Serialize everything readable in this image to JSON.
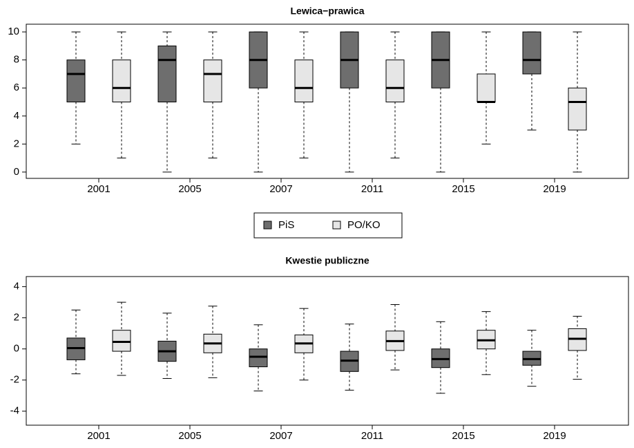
{
  "chart_data": [
    {
      "type": "boxplot",
      "title": "Lewica−prawica",
      "categories": [
        "2001",
        "2005",
        "2007",
        "2011",
        "2015",
        "2019"
      ],
      "ylim": [
        -0.45,
        10.55
      ],
      "yticks": [
        0,
        2,
        4,
        6,
        8,
        10
      ],
      "series": [
        {
          "name": "PiS",
          "color": "#6e6e6e",
          "boxes": [
            {
              "min": 2,
              "q1": 5,
              "median": 7,
              "q3": 8,
              "max": 10
            },
            {
              "min": 0,
              "q1": 5,
              "median": 8,
              "q3": 9,
              "max": 10
            },
            {
              "min": 0,
              "q1": 6,
              "median": 8,
              "q3": 10,
              "max": 10
            },
            {
              "min": 0,
              "q1": 6,
              "median": 8,
              "q3": 10,
              "max": 10
            },
            {
              "min": 0,
              "q1": 6,
              "median": 8,
              "q3": 10,
              "max": 10
            },
            {
              "min": 3,
              "q1": 7,
              "median": 8,
              "q3": 10,
              "max": 10
            }
          ]
        },
        {
          "name": "PO/KO",
          "color": "#e6e6e6",
          "boxes": [
            {
              "min": 1,
              "q1": 5,
              "median": 6,
              "q3": 8,
              "max": 10
            },
            {
              "min": 1,
              "q1": 5,
              "median": 7,
              "q3": 8,
              "max": 10
            },
            {
              "min": 1,
              "q1": 5,
              "median": 6,
              "q3": 8,
              "max": 10
            },
            {
              "min": 1,
              "q1": 5,
              "median": 6,
              "q3": 8,
              "max": 10
            },
            {
              "min": 2,
              "q1": 5,
              "median": 5,
              "q3": 7,
              "max": 10
            },
            {
              "min": 0,
              "q1": 3,
              "median": 5,
              "q3": 6,
              "max": 10
            }
          ]
        }
      ]
    },
    {
      "type": "boxplot",
      "title": "Kwestie publiczne",
      "categories": [
        "2001",
        "2005",
        "2007",
        "2011",
        "2015",
        "2019"
      ],
      "ylim": [
        -4.9,
        4.65
      ],
      "yticks": [
        -4,
        -2,
        0,
        2,
        4
      ],
      "series": [
        {
          "color": "#6e6e6e",
          "boxes": [
            {
              "min": -1.6,
              "q1": -0.7,
              "median": 0.05,
              "q3": 0.7,
              "max": 2.5
            },
            {
              "min": -1.9,
              "q1": -0.8,
              "median": -0.15,
              "q3": 0.5,
              "max": 2.3
            },
            {
              "min": -2.7,
              "q1": -1.15,
              "median": -0.5,
              "q3": 0.0,
              "max": 1.55
            },
            {
              "min": -2.65,
              "q1": -1.45,
              "median": -0.75,
              "q3": -0.15,
              "max": 1.6
            },
            {
              "min": -2.85,
              "q1": -1.2,
              "median": -0.65,
              "q3": 0.0,
              "max": 1.75
            },
            {
              "min": -2.4,
              "q1": -1.05,
              "median": -0.65,
              "q3": -0.15,
              "max": 1.2
            }
          ]
        },
        {
          "color": "#e6e6e6",
          "boxes": [
            {
              "min": -1.7,
              "q1": -0.15,
              "median": 0.45,
              "q3": 1.2,
              "max": 3.0
            },
            {
              "min": -1.85,
              "q1": -0.25,
              "median": 0.35,
              "q3": 0.95,
              "max": 2.75
            },
            {
              "min": -2.0,
              "q1": -0.25,
              "median": 0.35,
              "q3": 0.9,
              "max": 2.6
            },
            {
              "min": -1.35,
              "q1": -0.1,
              "median": 0.5,
              "q3": 1.15,
              "max": 2.85
            },
            {
              "min": -1.65,
              "q1": 0.0,
              "median": 0.55,
              "q3": 1.2,
              "max": 2.4
            },
            {
              "min": -1.95,
              "q1": -0.1,
              "median": 0.65,
              "q3": 1.3,
              "max": 2.1
            }
          ]
        }
      ]
    }
  ]
}
